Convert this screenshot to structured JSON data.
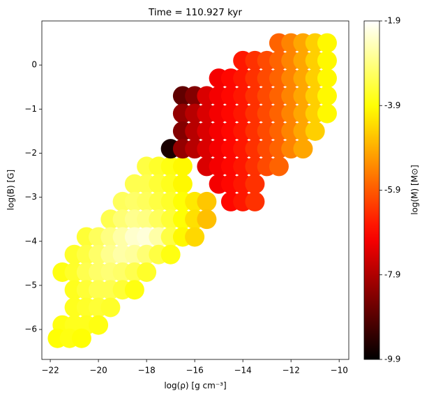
{
  "chart_data": {
    "type": "scatter",
    "title": "Time = 110.927 kyr",
    "x_label": "log(ρ) [g cm⁻³]",
    "y_label": "log(B) [G]",
    "colorbar_label": "log(M) [M⊙]",
    "colormap": "hot",
    "xlim": [
      -22.35,
      -9.6
    ],
    "ylim": [
      -6.68,
      1.0
    ],
    "xticks": [
      {
        "value": -22,
        "label": "−22"
      },
      {
        "value": -20,
        "label": "−20"
      },
      {
        "value": -18,
        "label": "−18"
      },
      {
        "value": -16,
        "label": "−16"
      },
      {
        "value": -14,
        "label": "−14"
      },
      {
        "value": -12,
        "label": "−12"
      },
      {
        "value": -10,
        "label": "−10"
      }
    ],
    "yticks": [
      {
        "value": -6,
        "label": "−6"
      },
      {
        "value": -5,
        "label": "−5"
      },
      {
        "value": -4,
        "label": "−4"
      },
      {
        "value": -3,
        "label": "−3"
      },
      {
        "value": -2,
        "label": "−2"
      },
      {
        "value": -1,
        "label": "−1"
      },
      0
    ],
    "clim": [
      -9.9,
      -1.9
    ],
    "cticks": [
      -1.9,
      -3.9,
      -5.9,
      -7.9,
      -9.9
    ],
    "x": [
      -18,
      -17.5,
      -17,
      -16.5,
      -18.5,
      -18,
      -17.5,
      -17,
      -16.5,
      -19,
      -18.5,
      -18,
      -17.5,
      -17,
      -16.5,
      -16,
      -15.5,
      -19.5,
      -19,
      -18.5,
      -18,
      -17.5,
      -17,
      -16.5,
      -16,
      -15.5,
      -20.5,
      -20,
      -19.5,
      -19,
      -18.5,
      -18,
      -17.5,
      -17,
      -16.5,
      -16,
      -21,
      -20.5,
      -20,
      -19.5,
      -19,
      -18.5,
      -18,
      -17.5,
      -17,
      -21.5,
      -21,
      -20.5,
      -20,
      -19.5,
      -19,
      -18.5,
      -18,
      -21,
      -20.5,
      -20,
      -19.5,
      -19,
      -18.5,
      -21,
      -20.5,
      -20,
      -19.5,
      -21.5,
      -21,
      -20.5,
      -20,
      -21.7,
      -21.2,
      -20.7,
      -12.5,
      -12,
      -11.5,
      -11,
      -10.5,
      -14,
      -13.5,
      -13,
      -12.5,
      -12,
      -11.5,
      -11,
      -10.5,
      -15,
      -14.5,
      -14,
      -13.5,
      -13,
      -12.5,
      -12,
      -11.5,
      -11,
      -10.5,
      -16.5,
      -16,
      -15.5,
      -15,
      -14.5,
      -14,
      -13.5,
      -13,
      -12.5,
      -12,
      -11.5,
      -11,
      -10.5,
      -16.5,
      -16,
      -15.5,
      -15,
      -14.5,
      -14,
      -13.5,
      -13,
      -12.5,
      -12,
      -11.5,
      -11,
      -10.5,
      -16.5,
      -16,
      -15.5,
      -15,
      -14.5,
      -14,
      -13.5,
      -13,
      -12.5,
      -12,
      -11.5,
      -11,
      -17,
      -16.5,
      -16,
      -15.5,
      -15,
      -14.5,
      -14,
      -13.5,
      -13,
      -12.5,
      -12,
      -11.5,
      -15.5,
      -15,
      -14.5,
      -14,
      -13.5,
      -13,
      -12.5,
      -15,
      -14.5,
      -14,
      -13.5,
      -14.5,
      -14,
      -13.5
    ],
    "values": [
      -2.3,
      -2.3,
      -2.3,
      -2.3,
      -2.7,
      -2.7,
      -2.7,
      -2.7,
      -2.7,
      -3.1,
      -3.1,
      -3.1,
      -3.1,
      -3.1,
      -3.1,
      -3.1,
      -3.1,
      -3.5,
      -3.5,
      -3.5,
      -3.5,
      -3.5,
      -3.5,
      -3.5,
      -3.5,
      -3.5,
      -3.9,
      -3.9,
      -3.9,
      -3.9,
      -3.9,
      -3.9,
      -3.9,
      -3.9,
      -3.9,
      -3.9,
      -4.3,
      -4.3,
      -4.3,
      -4.3,
      -4.3,
      -4.3,
      -4.3,
      -4.3,
      -4.3,
      -4.7,
      -4.7,
      -4.7,
      -4.7,
      -4.7,
      -4.7,
      -4.7,
      -4.7,
      -5.1,
      -5.1,
      -5.1,
      -5.1,
      -5.1,
      -5.1,
      -5.5,
      -5.5,
      -5.5,
      -5.5,
      -5.9,
      -5.9,
      -5.9,
      -5.9,
      -6.2,
      -6.2,
      -6.2,
      0.5,
      0.5,
      0.5,
      0.5,
      0.5,
      0.1,
      0.1,
      0.1,
      0.1,
      0.1,
      0.1,
      0.1,
      0.1,
      -0.3,
      -0.3,
      -0.3,
      -0.3,
      -0.3,
      -0.3,
      -0.3,
      -0.3,
      -0.3,
      -0.3,
      -0.7,
      -0.7,
      -0.7,
      -0.7,
      -0.7,
      -0.7,
      -0.7,
      -0.7,
      -0.7,
      -0.7,
      -0.7,
      -0.7,
      -0.7,
      -1.1,
      -1.1,
      -1.1,
      -1.1,
      -1.1,
      -1.1,
      -1.1,
      -1.1,
      -1.1,
      -1.1,
      -1.1,
      -1.1,
      -1.1,
      -1.5,
      -1.5,
      -1.5,
      -1.5,
      -1.5,
      -1.5,
      -1.5,
      -1.5,
      -1.5,
      -1.5,
      -1.5,
      -1.5,
      -1.9,
      -1.9,
      -1.9,
      -1.9,
      -1.9,
      -1.9,
      -1.9,
      -1.9,
      -1.9,
      -1.9,
      -1.9,
      -1.9,
      -2.3,
      -2.3,
      -2.3,
      -2.3,
      -2.3,
      -2.3,
      -2.3,
      -2.7,
      -2.7,
      -2.7,
      -2.7,
      -3.1,
      -3.1,
      -3.1
    ],
    "color_values": [
      -3.4,
      -3.6,
      -3.8,
      -4.0,
      -3.3,
      -3.3,
      -3.5,
      -3.7,
      -4.0,
      -3.2,
      -3.1,
      -3.2,
      -3.4,
      -3.6,
      -3.9,
      -4.2,
      -4.6,
      -3.3,
      -3.0,
      -2.8,
      -2.9,
      -3.2,
      -3.5,
      -3.9,
      -4.3,
      -4.7,
      -3.5,
      -3.2,
      -2.9,
      -2.6,
      -2.3,
      -2.2,
      -2.6,
      -3.4,
      -4.0,
      -4.4,
      -3.6,
      -3.4,
      -3.1,
      -2.8,
      -2.6,
      -2.7,
      -3.0,
      -3.4,
      -3.8,
      -3.8,
      -3.6,
      -3.3,
      -3.1,
      -3.0,
      -3.1,
      -3.3,
      -3.6,
      -3.7,
      -3.5,
      -3.3,
      -3.3,
      -3.5,
      -3.8,
      -3.7,
      -3.6,
      -3.5,
      -3.6,
      -3.8,
      -3.7,
      -3.7,
      -3.8,
      -3.9,
      -3.8,
      -3.9,
      -5.8,
      -5.4,
      -5.0,
      -4.5,
      -4.0,
      -6.7,
      -6.4,
      -6.1,
      -5.8,
      -5.4,
      -5.0,
      -4.5,
      -4.0,
      -7.1,
      -6.9,
      -6.7,
      -6.4,
      -6.1,
      -5.8,
      -5.4,
      -5.0,
      -4.5,
      -4.0,
      -8.8,
      -8.4,
      -7.4,
      -7.1,
      -6.9,
      -6.7,
      -6.4,
      -6.1,
      -5.8,
      -5.4,
      -5.0,
      -4.5,
      -4.0,
      -8.2,
      -7.8,
      -7.4,
      -7.1,
      -6.9,
      -6.7,
      -6.4,
      -6.1,
      -5.8,
      -5.4,
      -5.0,
      -4.5,
      -4.0,
      -8.4,
      -7.8,
      -7.4,
      -7.1,
      -6.9,
      -6.7,
      -6.4,
      -6.1,
      -5.8,
      -5.4,
      -5.0,
      -4.5,
      -9.6,
      -8.2,
      -7.8,
      -7.4,
      -7.1,
      -6.9,
      -6.7,
      -6.4,
      -6.1,
      -5.8,
      -5.4,
      -5.0,
      -7.4,
      -7.1,
      -6.9,
      -6.7,
      -6.4,
      -6.1,
      -5.8,
      -7.1,
      -6.9,
      -6.7,
      -6.4,
      -6.9,
      -6.7,
      -6.4
    ]
  }
}
